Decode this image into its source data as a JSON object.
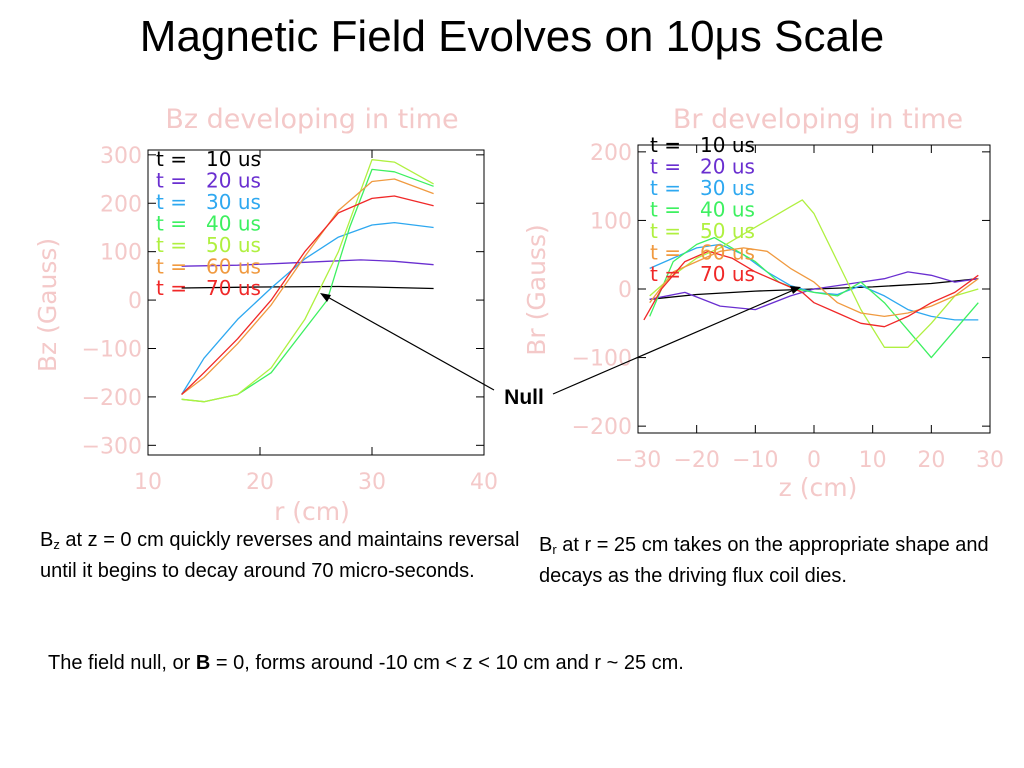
{
  "slide": {
    "title": "Magnetic Field Evolves on 10μs Scale",
    "null_label": "Null",
    "caption_left": {
      "sym": "B",
      "sub": "z",
      "text": " at z = 0 cm quickly reverses and maintains reversal until it begins to decay around 70 micro-seconds."
    },
    "caption_right": {
      "sym": "B",
      "sub": "r",
      "text": " at r = 25 cm takes on the appropriate shape and decays as the driving flux coil dies."
    },
    "caption_bottom": {
      "pre": "The field null, or ",
      "bold": "B",
      "post": " = 0, forms around -10 cm  < z < 10 cm and r ~ 25 cm."
    }
  },
  "colors": {
    "t10": "#000000",
    "t20": "#6a2fd0",
    "t30": "#2ea8f0",
    "t40": "#3df060",
    "t50": "#b0f040",
    "t60": "#f09a40",
    "t70": "#f02828",
    "axis_text": "#f4c9c9"
  },
  "chart_data": [
    {
      "type": "line",
      "title": "Bz developing in time",
      "xlabel": "r (cm)",
      "ylabel": "Bz (Gauss)",
      "xlim": [
        10,
        40
      ],
      "ylim": [
        -320,
        310
      ],
      "xticks": [
        10,
        20,
        30,
        40
      ],
      "yticks": [
        300,
        200,
        100,
        0,
        -100,
        -200,
        -300
      ],
      "grid": false,
      "legend": "top-left",
      "series": [
        {
          "name": "t =   10 us",
          "color": "#000000",
          "x": [
            13,
            20,
            27,
            30,
            35.5
          ],
          "y": [
            25,
            27,
            28,
            27,
            24
          ]
        },
        {
          "name": "t =   20 us",
          "color": "#6a2fd0",
          "x": [
            13,
            18,
            22,
            26,
            29,
            32,
            35.5
          ],
          "y": [
            70,
            72,
            76,
            80,
            83,
            80,
            73
          ]
        },
        {
          "name": "t =   30 us",
          "color": "#2ea8f0",
          "x": [
            13,
            15,
            18,
            21,
            24,
            27,
            30,
            32,
            35.5
          ],
          "y": [
            -195,
            -120,
            -40,
            25,
            85,
            130,
            155,
            160,
            150
          ]
        },
        {
          "name": "t =   40 us",
          "color": "#3df060",
          "x": [
            13,
            15,
            18,
            21,
            24,
            26,
            28,
            30,
            32,
            35.5
          ],
          "y": [
            -205,
            -210,
            -195,
            -150,
            -60,
            0,
            150,
            270,
            265,
            235
          ]
        },
        {
          "name": "t =   50 us",
          "color": "#b0f040",
          "x": [
            13,
            15,
            18,
            21,
            24,
            27,
            30,
            32,
            35.5
          ],
          "y": [
            -205,
            -210,
            -195,
            -140,
            -40,
            100,
            290,
            285,
            240
          ]
        },
        {
          "name": "t =   60 us",
          "color": "#f09a40",
          "x": [
            13,
            15,
            18,
            21,
            24,
            27,
            30,
            32,
            35.5
          ],
          "y": [
            -195,
            -160,
            -90,
            -10,
            90,
            185,
            245,
            250,
            220
          ]
        },
        {
          "name": "t =   70 us",
          "color": "#f02828",
          "x": [
            13,
            15,
            18,
            21,
            24,
            27,
            30,
            32,
            35.5
          ],
          "y": [
            -195,
            -150,
            -80,
            0,
            100,
            180,
            210,
            215,
            195
          ]
        }
      ]
    },
    {
      "type": "line",
      "title": "Br developing in time",
      "xlabel": "z (cm)",
      "ylabel": "Br (Gauss)",
      "xlim": [
        -30,
        30
      ],
      "ylim": [
        -210,
        210
      ],
      "xticks": [
        -30,
        -20,
        -10,
        0,
        10,
        20,
        30
      ],
      "yticks": [
        200,
        100,
        0,
        -100,
        -200
      ],
      "grid": false,
      "legend": "top-left",
      "series": [
        {
          "name": "t =   10 us",
          "color": "#000000",
          "x": [
            -28,
            -20,
            -10,
            0,
            10,
            20,
            28
          ],
          "y": [
            -15,
            -8,
            -3,
            0,
            3,
            8,
            15
          ]
        },
        {
          "name": "t =   20 us",
          "color": "#6a2fd0",
          "x": [
            -28,
            -22,
            -16,
            -10,
            -4,
            0,
            4,
            8,
            12,
            16,
            20,
            24,
            28
          ],
          "y": [
            -15,
            -5,
            -25,
            -30,
            -10,
            0,
            5,
            10,
            15,
            25,
            20,
            10,
            15
          ]
        },
        {
          "name": "t =   30 us",
          "color": "#2ea8f0",
          "x": [
            -28,
            -24,
            -20,
            -16,
            -12,
            -8,
            -4,
            0,
            4,
            8,
            12,
            16,
            20,
            24,
            28
          ],
          "y": [
            30,
            45,
            60,
            65,
            50,
            25,
            5,
            -5,
            -8,
            5,
            -10,
            -30,
            -40,
            -45,
            -45
          ]
        },
        {
          "name": "t =   40 us",
          "color": "#3df060",
          "x": [
            -28,
            -24,
            -20,
            -17,
            -14,
            -10,
            -6,
            -3,
            0,
            4,
            8,
            12,
            16,
            20,
            24,
            28
          ],
          "y": [
            -40,
            40,
            65,
            75,
            60,
            40,
            10,
            0,
            -5,
            -10,
            10,
            -20,
            -60,
            -100,
            -60,
            -20
          ]
        },
        {
          "name": "t =   50 us",
          "color": "#b0f040",
          "x": [
            -28,
            -24,
            -20,
            -16,
            -12,
            -8,
            -4,
            -2,
            0,
            4,
            8,
            12,
            16,
            20,
            24,
            28
          ],
          "y": [
            -10,
            20,
            45,
            60,
            80,
            100,
            120,
            130,
            110,
            40,
            -30,
            -85,
            -85,
            -50,
            -10,
            0
          ]
        },
        {
          "name": "t =   60 us",
          "color": "#f09a40",
          "x": [
            -28,
            -24,
            -20,
            -16,
            -12,
            -8,
            -4,
            0,
            4,
            8,
            12,
            16,
            20,
            24,
            28
          ],
          "y": [
            -20,
            25,
            40,
            55,
            60,
            55,
            30,
            10,
            -20,
            -35,
            -40,
            -35,
            -25,
            -10,
            15
          ]
        },
        {
          "name": "t =   70 us",
          "color": "#f02828",
          "x": [
            -29,
            -26,
            -22,
            -18,
            -14,
            -10,
            -6,
            -2,
            0,
            4,
            8,
            12,
            16,
            20,
            24,
            28
          ],
          "y": [
            -45,
            0,
            40,
            55,
            45,
            25,
            10,
            -5,
            -20,
            -35,
            -50,
            -55,
            -40,
            -20,
            -5,
            20
          ]
        }
      ]
    }
  ]
}
